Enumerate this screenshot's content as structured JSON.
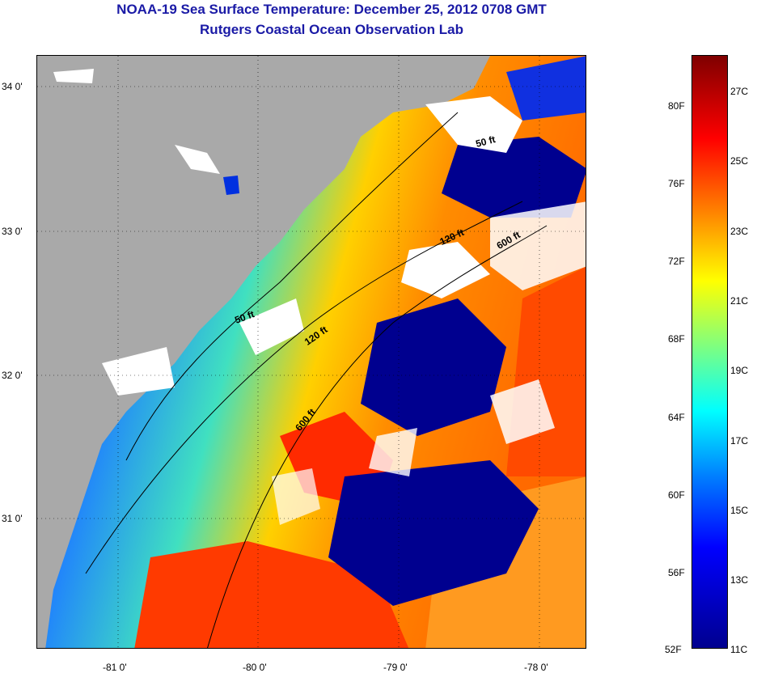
{
  "title": "NOAA-19 Sea Surface Temperature:  December 25, 2012 0708 GMT",
  "subtitle": "Rutgers Coastal Ocean Observation Lab",
  "lat_labels": [
    "34 0'",
    "33 0'",
    "32 0'",
    "31 0'"
  ],
  "lon_labels": [
    "-81 0'",
    "-80 0'",
    "-79 0'",
    "-78 0'"
  ],
  "isobaths": [
    "50 ft",
    "50 ft",
    "120 ft",
    "120 ft",
    "600 ft",
    "600 ft"
  ],
  "colorbar": {
    "fahrenheit": [
      "80F",
      "76F",
      "72F",
      "68F",
      "64F",
      "60F",
      "56F",
      "52F"
    ],
    "celsius": [
      "27C",
      "25C",
      "23C",
      "21C",
      "19C",
      "17C",
      "15C",
      "13C",
      "11C"
    ]
  },
  "colors": {
    "land": "#a9a9a9",
    "cloud": "#ffffff",
    "cold": "#00008f",
    "warm": "#ff3300",
    "title": "#1a1aa6"
  }
}
